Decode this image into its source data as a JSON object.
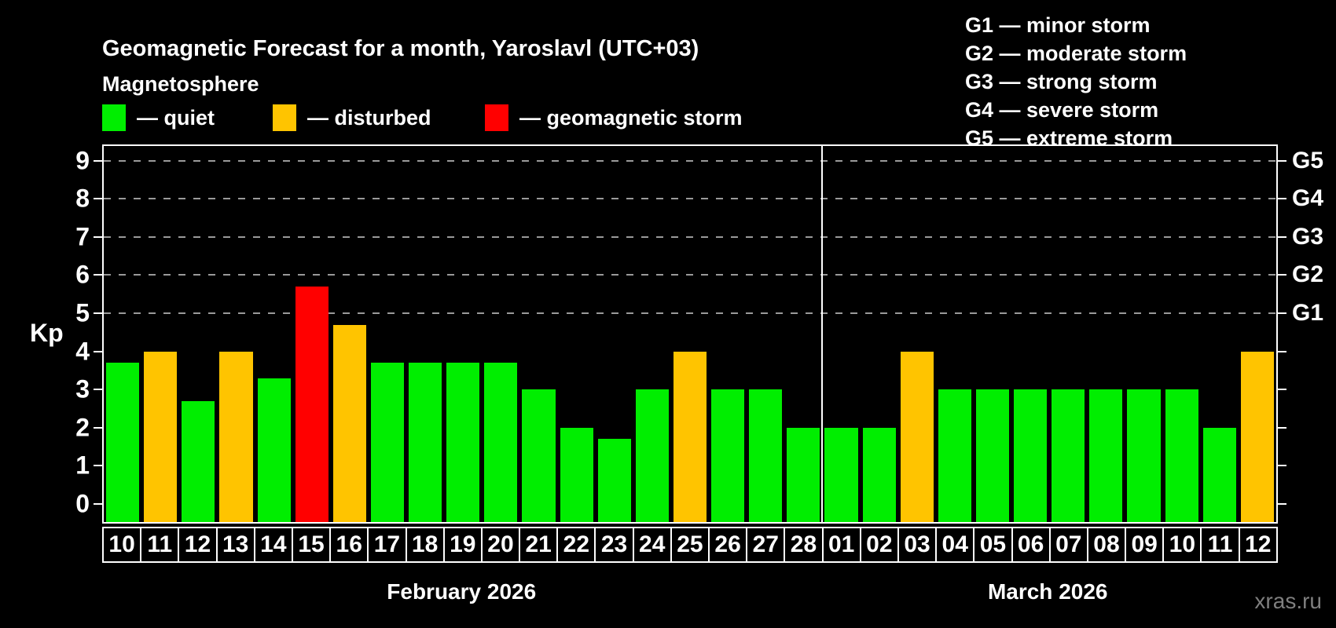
{
  "header": {
    "title": "Geomagnetic Forecast for a month, Yaroslavl (UTC+03)",
    "subtitle": "Magnetosphere"
  },
  "legend": {
    "items": [
      {
        "key": "quiet",
        "label": "— quiet",
        "color": "#00ee00"
      },
      {
        "key": "disturbed",
        "label": "— disturbed",
        "color": "#ffc400"
      },
      {
        "key": "storm",
        "label": "— geomagnetic storm",
        "color": "#ff0000"
      }
    ]
  },
  "g_scale_legend": {
    "items": [
      "G1 — minor storm",
      "G2 — moderate storm",
      "G3 — strong storm",
      "G4 — severe storm",
      "G5 — extreme storm"
    ]
  },
  "watermark": "xras.ru",
  "chart_data": {
    "type": "bar",
    "title": "Geomagnetic Forecast for a month, Yaroslavl (UTC+03)",
    "ylabel": "Kp",
    "ylim": [
      -0.5,
      9.4
    ],
    "yticks": [
      0,
      1,
      2,
      3,
      4,
      5,
      6,
      7,
      8,
      9
    ],
    "gridlines_at": [
      5,
      6,
      7,
      8,
      9
    ],
    "grid": "dashed-horizontal",
    "legend_position": "top",
    "right_axis_labels": [
      {
        "kp": 5,
        "label": "G1"
      },
      {
        "kp": 6,
        "label": "G2"
      },
      {
        "kp": 7,
        "label": "G3"
      },
      {
        "kp": 8,
        "label": "G4"
      },
      {
        "kp": 9,
        "label": "G5"
      }
    ],
    "status_colors": {
      "quiet": "#00ee00",
      "disturbed": "#ffc400",
      "storm": "#ff0000"
    },
    "months": [
      {
        "label": "February 2026",
        "days": [
          {
            "day": "10",
            "kp": 3.7,
            "status": "quiet"
          },
          {
            "day": "11",
            "kp": 4.0,
            "status": "disturbed"
          },
          {
            "day": "12",
            "kp": 2.7,
            "status": "quiet"
          },
          {
            "day": "13",
            "kp": 4.0,
            "status": "disturbed"
          },
          {
            "day": "14",
            "kp": 3.3,
            "status": "quiet"
          },
          {
            "day": "15",
            "kp": 5.7,
            "status": "storm"
          },
          {
            "day": "16",
            "kp": 4.7,
            "status": "disturbed"
          },
          {
            "day": "17",
            "kp": 3.7,
            "status": "quiet"
          },
          {
            "day": "18",
            "kp": 3.7,
            "status": "quiet"
          },
          {
            "day": "19",
            "kp": 3.7,
            "status": "quiet"
          },
          {
            "day": "20",
            "kp": 3.7,
            "status": "quiet"
          },
          {
            "day": "21",
            "kp": 3.0,
            "status": "quiet"
          },
          {
            "day": "22",
            "kp": 2.0,
            "status": "quiet"
          },
          {
            "day": "23",
            "kp": 1.7,
            "status": "quiet"
          },
          {
            "day": "24",
            "kp": 3.0,
            "status": "quiet"
          },
          {
            "day": "25",
            "kp": 4.0,
            "status": "disturbed"
          },
          {
            "day": "26",
            "kp": 3.0,
            "status": "quiet"
          },
          {
            "day": "27",
            "kp": 3.0,
            "status": "quiet"
          },
          {
            "day": "28",
            "kp": 2.0,
            "status": "quiet"
          }
        ]
      },
      {
        "label": "March 2026",
        "days": [
          {
            "day": "01",
            "kp": 2.0,
            "status": "quiet"
          },
          {
            "day": "02",
            "kp": 2.0,
            "status": "quiet"
          },
          {
            "day": "03",
            "kp": 4.0,
            "status": "disturbed"
          },
          {
            "day": "04",
            "kp": 3.0,
            "status": "quiet"
          },
          {
            "day": "05",
            "kp": 3.0,
            "status": "quiet"
          },
          {
            "day": "06",
            "kp": 3.0,
            "status": "quiet"
          },
          {
            "day": "07",
            "kp": 3.0,
            "status": "quiet"
          },
          {
            "day": "08",
            "kp": 3.0,
            "status": "quiet"
          },
          {
            "day": "09",
            "kp": 3.0,
            "status": "quiet"
          },
          {
            "day": "10",
            "kp": 3.0,
            "status": "quiet"
          },
          {
            "day": "11",
            "kp": 2.0,
            "status": "quiet"
          },
          {
            "day": "12",
            "kp": 4.0,
            "status": "disturbed"
          }
        ]
      }
    ]
  }
}
